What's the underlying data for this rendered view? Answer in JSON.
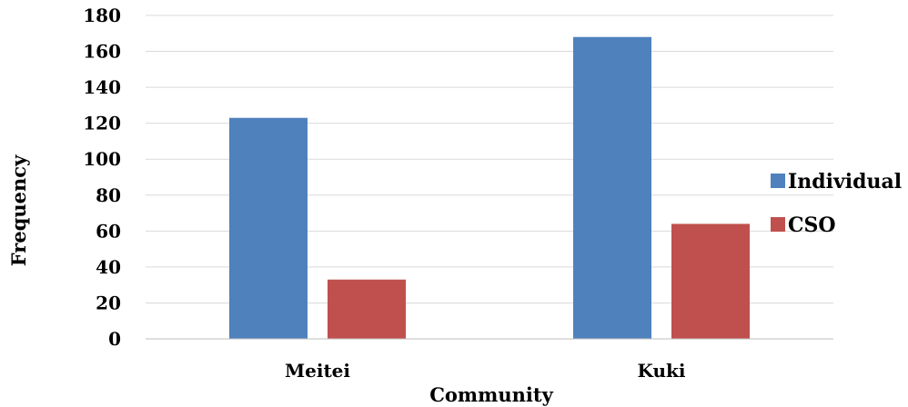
{
  "chart_data": {
    "type": "bar",
    "title": "",
    "xlabel": "Community",
    "ylabel": "Frequency",
    "categories": [
      "Meitei",
      "Kuki"
    ],
    "series": [
      {
        "name": "Individual",
        "color": "#4f81bd",
        "values": [
          123,
          168
        ]
      },
      {
        "name": "CSO",
        "color": "#c0504d",
        "values": [
          33,
          64
        ]
      }
    ],
    "ylim": [
      0,
      180
    ],
    "yticks": [
      "0",
      "20",
      "40",
      "60",
      "80",
      "100",
      "120",
      "140",
      "160",
      "180"
    ],
    "ytick_values": [
      0,
      20,
      40,
      60,
      80,
      100,
      120,
      140,
      160,
      180
    ],
    "grid": true,
    "legend_position": "right"
  }
}
